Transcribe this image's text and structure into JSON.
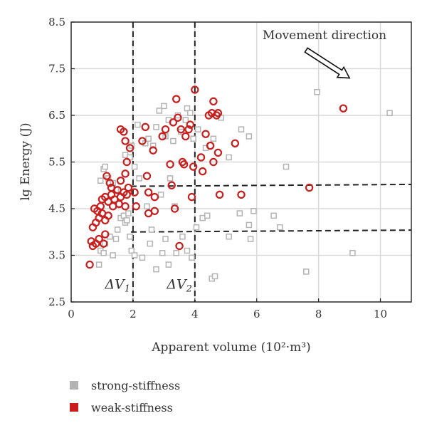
{
  "chart_data": {
    "type": "scatter",
    "xlabel": "Apparent volume (10²·m³)",
    "ylabel": "lg Energy (J)",
    "xlim": [
      0,
      11
    ],
    "ylim": [
      2.5,
      8.5
    ],
    "x_ticks": [
      "0",
      "2",
      "4",
      "6",
      "8",
      "10"
    ],
    "y_ticks": [
      "2.5",
      "3.5",
      "4.5",
      "5.5",
      "6.5",
      "7.5",
      "8.5"
    ],
    "grid": true,
    "legend_position": "bottom-left",
    "annotation": {
      "text": "Movement direction",
      "arrow_from": [
        7.6,
        7.9
      ],
      "arrow_to": [
        9.0,
        7.3
      ]
    },
    "threshold_labels": [
      {
        "text": "ΔV1",
        "x": 1.5,
        "y": 2.78
      },
      {
        "text": "ΔV2",
        "x": 3.5,
        "y": 2.78
      }
    ],
    "reference_lines": {
      "vertical": [
        2,
        4
      ],
      "horizontal": [
        {
          "from": [
            2.0,
            4.98
          ],
          "to": [
            11,
            5.02
          ]
        },
        {
          "from": [
            2.0,
            4.0
          ],
          "to": [
            11,
            4.04
          ]
        }
      ]
    },
    "series": [
      {
        "name": "strong-stiffness",
        "color": "#b3b3b3",
        "marker": "square",
        "points": [
          [
            0.9,
            3.3
          ],
          [
            0.95,
            3.6
          ],
          [
            1.05,
            3.55
          ],
          [
            1.1,
            3.75
          ],
          [
            1.25,
            3.9
          ],
          [
            1.35,
            3.5
          ],
          [
            1.45,
            3.85
          ],
          [
            1.5,
            4.05
          ],
          [
            1.6,
            4.3
          ],
          [
            1.7,
            4.35
          ],
          [
            1.75,
            4.2
          ],
          [
            1.8,
            4.25
          ],
          [
            1.85,
            4.4
          ],
          [
            1.9,
            3.9
          ],
          [
            1.95,
            3.6
          ],
          [
            2.05,
            3.5
          ],
          [
            2.3,
            3.45
          ],
          [
            2.55,
            3.75
          ],
          [
            2.6,
            4.05
          ],
          [
            2.75,
            3.2
          ],
          [
            2.95,
            3.55
          ],
          [
            3.05,
            3.85
          ],
          [
            3.15,
            3.3
          ],
          [
            3.4,
            3.55
          ],
          [
            3.6,
            3.9
          ],
          [
            3.75,
            3.6
          ],
          [
            3.9,
            3.45
          ],
          [
            4.05,
            4.1
          ],
          [
            4.25,
            4.3
          ],
          [
            4.55,
            3.0
          ],
          [
            4.65,
            3.05
          ],
          [
            0.95,
            5.1
          ],
          [
            1.05,
            5.35
          ],
          [
            1.1,
            5.4
          ],
          [
            1.2,
            5.15
          ],
          [
            1.35,
            5.05
          ],
          [
            1.45,
            4.9
          ],
          [
            1.55,
            4.6
          ],
          [
            1.75,
            5.65
          ],
          [
            1.9,
            5.6
          ],
          [
            1.95,
            5.85
          ],
          [
            2.05,
            5.4
          ],
          [
            2.15,
            6.3
          ],
          [
            2.2,
            5.15
          ],
          [
            2.4,
            5.9
          ],
          [
            2.5,
            6.0
          ],
          [
            2.65,
            5.85
          ],
          [
            2.75,
            6.25
          ],
          [
            2.85,
            6.6
          ],
          [
            3.0,
            6.7
          ],
          [
            3.05,
            6.05
          ],
          [
            3.15,
            6.4
          ],
          [
            3.3,
            5.95
          ],
          [
            3.45,
            6.5
          ],
          [
            3.55,
            6.15
          ],
          [
            3.7,
            6.4
          ],
          [
            3.75,
            6.65
          ],
          [
            3.85,
            6.55
          ],
          [
            3.95,
            6.0
          ],
          [
            4.1,
            6.2
          ],
          [
            4.35,
            5.8
          ],
          [
            4.6,
            6.0
          ],
          [
            4.85,
            6.45
          ],
          [
            5.1,
            5.6
          ],
          [
            5.5,
            6.2
          ],
          [
            5.75,
            6.05
          ],
          [
            6.95,
            5.4
          ],
          [
            5.1,
            3.9
          ],
          [
            5.45,
            4.4
          ],
          [
            5.75,
            4.15
          ],
          [
            5.9,
            4.45
          ],
          [
            5.8,
            3.85
          ],
          [
            6.55,
            4.35
          ],
          [
            6.75,
            4.1
          ],
          [
            7.6,
            3.15
          ],
          [
            7.95,
            7.0
          ],
          [
            9.1,
            3.55
          ],
          [
            10.3,
            6.55
          ],
          [
            4.4,
            4.35
          ],
          [
            3.35,
            4.55
          ],
          [
            2.9,
            4.8
          ],
          [
            2.45,
            4.55
          ],
          [
            3.2,
            5.15
          ]
        ]
      },
      {
        "name": "weak-stiffness",
        "color": "#c81e1e",
        "marker": "circle",
        "points": [
          [
            0.6,
            3.3
          ],
          [
            0.65,
            3.8
          ],
          [
            0.7,
            3.7
          ],
          [
            0.8,
            3.75
          ],
          [
            0.9,
            3.85
          ],
          [
            1.05,
            3.75
          ],
          [
            1.1,
            3.95
          ],
          [
            0.7,
            4.1
          ],
          [
            0.8,
            4.2
          ],
          [
            0.9,
            4.3
          ],
          [
            1.0,
            4.4
          ],
          [
            1.1,
            4.25
          ],
          [
            1.2,
            4.35
          ],
          [
            0.75,
            4.5
          ],
          [
            0.85,
            4.45
          ],
          [
            0.95,
            4.55
          ],
          [
            1.0,
            4.7
          ],
          [
            1.1,
            4.75
          ],
          [
            1.2,
            4.65
          ],
          [
            1.3,
            4.8
          ],
          [
            1.35,
            4.55
          ],
          [
            1.4,
            4.7
          ],
          [
            1.5,
            4.9
          ],
          [
            1.55,
            4.6
          ],
          [
            1.6,
            4.75
          ],
          [
            1.7,
            4.85
          ],
          [
            1.75,
            4.55
          ],
          [
            1.8,
            4.8
          ],
          [
            1.85,
            4.95
          ],
          [
            1.3,
            4.95
          ],
          [
            1.15,
            5.2
          ],
          [
            1.25,
            5.05
          ],
          [
            1.6,
            5.1
          ],
          [
            1.75,
            5.25
          ],
          [
            1.8,
            5.5
          ],
          [
            1.6,
            6.2
          ],
          [
            1.7,
            6.15
          ],
          [
            1.75,
            5.95
          ],
          [
            1.9,
            5.8
          ],
          [
            2.05,
            4.85
          ],
          [
            2.1,
            4.55
          ],
          [
            2.3,
            5.95
          ],
          [
            2.4,
            6.25
          ],
          [
            2.45,
            5.2
          ],
          [
            2.5,
            4.85
          ],
          [
            2.5,
            4.4
          ],
          [
            2.65,
            5.75
          ],
          [
            2.7,
            4.45
          ],
          [
            2.7,
            4.75
          ],
          [
            2.95,
            6.05
          ],
          [
            3.05,
            6.2
          ],
          [
            3.2,
            5.45
          ],
          [
            3.25,
            5.0
          ],
          [
            3.35,
            4.5
          ],
          [
            3.3,
            6.35
          ],
          [
            3.4,
            6.85
          ],
          [
            3.45,
            6.45
          ],
          [
            3.55,
            6.2
          ],
          [
            3.6,
            5.5
          ],
          [
            3.65,
            5.45
          ],
          [
            3.7,
            6.05
          ],
          [
            3.8,
            6.2
          ],
          [
            3.85,
            6.3
          ],
          [
            3.95,
            5.4
          ],
          [
            4.0,
            7.05
          ],
          [
            3.9,
            4.75
          ],
          [
            3.5,
            3.7
          ],
          [
            4.2,
            5.6
          ],
          [
            4.25,
            5.3
          ],
          [
            4.35,
            6.1
          ],
          [
            4.45,
            6.5
          ],
          [
            4.5,
            5.85
          ],
          [
            4.55,
            6.55
          ],
          [
            4.6,
            6.8
          ],
          [
            4.6,
            5.5
          ],
          [
            4.7,
            6.5
          ],
          [
            4.75,
            6.55
          ],
          [
            4.75,
            5.7
          ],
          [
            4.8,
            4.8
          ],
          [
            5.3,
            5.9
          ],
          [
            5.5,
            4.8
          ],
          [
            7.7,
            4.95
          ],
          [
            8.8,
            6.65
          ]
        ]
      }
    ]
  }
}
